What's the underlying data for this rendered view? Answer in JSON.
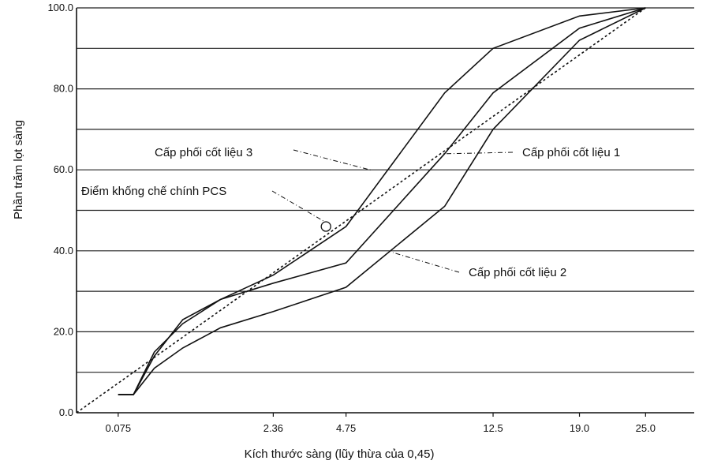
{
  "chart_data": {
    "type": "line",
    "title": "",
    "xlabel": "Kích thước sàng (lũy thừa của 0,45)",
    "ylabel": "Phần trăm lọt sàng",
    "x_scale": "power 0.45",
    "xlim": [
      0,
      30
    ],
    "ylim": [
      0,
      100
    ],
    "x_ticks": [
      "0.075",
      "2.36",
      "4.75",
      "12.5",
      "19.0",
      "25.0"
    ],
    "x_tick_values": [
      0.075,
      2.36,
      4.75,
      12.5,
      19.0,
      25.0
    ],
    "y_ticks": [
      "0.0",
      "20.0",
      "40.0",
      "60.0",
      "80.0",
      "100.0"
    ],
    "y_tick_values": [
      0,
      20,
      40,
      60,
      80,
      100
    ],
    "grid": "horizontal every 10",
    "series": [
      {
        "name": "Cấp phối cốt liệu 1",
        "style": "solid",
        "x": [
          0.075,
          0.15,
          0.3,
          0.6,
          1.18,
          2.36,
          4.75,
          9.5,
          12.5,
          19.0,
          25.0
        ],
        "y": [
          4.5,
          4.5,
          14,
          23,
          28,
          32,
          37,
          64,
          79,
          95,
          100
        ]
      },
      {
        "name": "Cấp phối cốt liệu 2",
        "style": "solid",
        "x": [
          0.075,
          0.15,
          0.3,
          0.6,
          1.18,
          2.36,
          4.75,
          9.5,
          12.5,
          19.0,
          25.0
        ],
        "y": [
          4.5,
          4.5,
          11,
          16,
          21,
          25,
          31,
          51,
          70,
          92,
          100
        ]
      },
      {
        "name": "Cấp phối cốt liệu 3",
        "style": "solid",
        "x": [
          0.075,
          0.15,
          0.3,
          0.6,
          1.18,
          2.36,
          4.75,
          9.5,
          12.5,
          19.0,
          25.0
        ],
        "y": [
          4.5,
          4.5,
          15,
          22,
          28,
          34,
          46,
          79,
          90,
          98,
          100
        ]
      },
      {
        "name": "",
        "style": "dotted",
        "x": [
          0,
          25.0
        ],
        "y": [
          0,
          100
        ]
      }
    ],
    "annotations": [
      {
        "text": "Cấp phối cốt liệu 3",
        "target_series": 2
      },
      {
        "text": "Cấp phối cốt liệu 1",
        "target_series": 0
      },
      {
        "text": "Điểm khống chế chính PCS",
        "target_point": [
          4.0,
          46
        ]
      },
      {
        "text": "Cấp phối cốt liệu 2",
        "target_series": 1
      }
    ]
  }
}
